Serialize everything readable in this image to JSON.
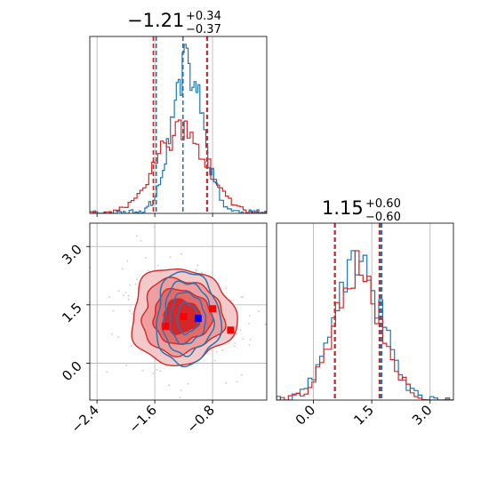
{
  "chart_data": [
    {
      "type": "histogram",
      "panel": "top-left",
      "title_value": "−1.21",
      "title_plus": "+0.34",
      "title_minus": "−0.37",
      "xlim": [
        -2.5,
        -0.05
      ],
      "grid": true,
      "series": [
        {
          "color": "#1f77b4",
          "quantiles": [
            -1.58,
            -1.21,
            -0.87
          ],
          "bin_edges_range": [
            -2.5,
            -0.05
          ],
          "peak_x": -1.15,
          "sigma": 0.22
        },
        {
          "color": "#d62728",
          "quantiles": [
            -1.62,
            -0.88
          ],
          "bin_edges_range": [
            -2.5,
            -0.05
          ],
          "peak_x": -1.23,
          "sigma": 0.35
        }
      ]
    },
    {
      "type": "contour",
      "panel": "bottom-left",
      "xlim": [
        -2.5,
        -0.05
      ],
      "ylim": [
        -0.95,
        3.6
      ],
      "xticks": [
        "−2.4",
        "−1.6",
        "−0.8"
      ],
      "xtick_values": [
        -2.4,
        -1.6,
        -0.8
      ],
      "yticks": [
        "0.0",
        "1.5",
        "3.0"
      ],
      "ytick_values": [
        0.0,
        1.5,
        3.0
      ],
      "grid": true,
      "series": [
        {
          "color": "#1f77b4",
          "center": [
            -1.15,
            1.15
          ],
          "sigma_x": 0.22,
          "sigma_y": 0.6,
          "points": [
            [
              -1.0,
              1.15
            ]
          ],
          "point_color": "#0000ff"
        },
        {
          "color": "#d62728",
          "center": [
            -1.23,
            1.2
          ],
          "sigma_x": 0.35,
          "sigma_y": 0.6,
          "points": [
            [
              -1.2,
              1.2
            ],
            [
              -0.8,
              1.4
            ],
            [
              -0.55,
              0.85
            ],
            [
              -1.45,
              0.95
            ]
          ],
          "point_color": "#ff0000"
        }
      ]
    },
    {
      "type": "histogram",
      "panel": "bottom-right",
      "title_value": "1.15",
      "title_plus": "+0.60",
      "title_minus": "−0.60",
      "xlim": [
        -0.95,
        3.6
      ],
      "xticks": [
        "0.0",
        "1.5",
        "3.0"
      ],
      "xtick_values": [
        0.0,
        1.5,
        3.0
      ],
      "grid": true,
      "series": [
        {
          "color": "#1f77b4",
          "quantiles": [
            0.55,
            1.75
          ],
          "peak_x": 1.15,
          "sigma": 0.6
        },
        {
          "color": "#d62728",
          "quantiles": [
            0.55,
            1.7
          ],
          "peak_x": 1.15,
          "sigma": 0.6
        }
      ]
    }
  ]
}
